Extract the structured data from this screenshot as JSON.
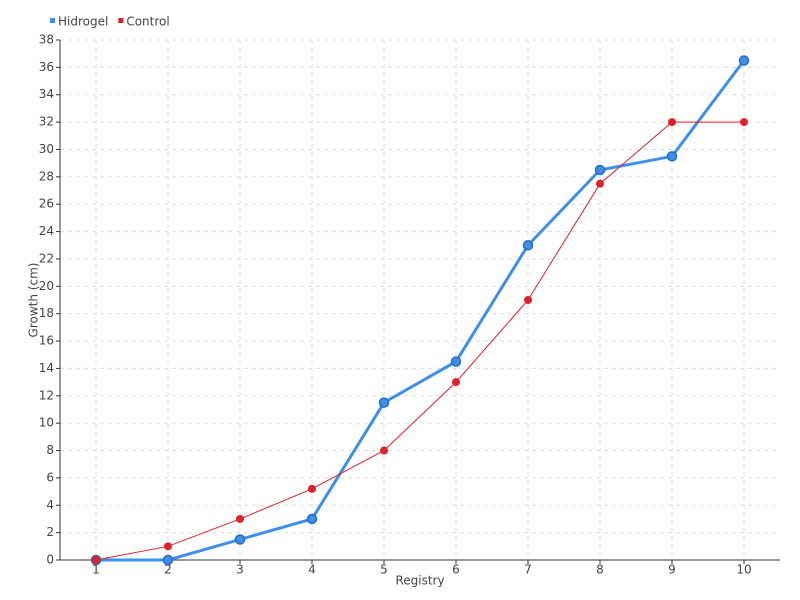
{
  "chart_data": {
    "type": "line",
    "x_label": "Registry",
    "y_label": "Growth (cm)",
    "categories": [
      "1",
      "2",
      "3",
      "4",
      "5",
      "6",
      "7",
      "8",
      "9",
      "10"
    ],
    "series": [
      {
        "name": "Hidrogel",
        "color": "#3d8fe8",
        "values": [
          0,
          0,
          1.5,
          3,
          11.5,
          14.5,
          23,
          28.5,
          29.5,
          36.5
        ]
      },
      {
        "name": "Control",
        "color": "#e0202a",
        "values": [
          0,
          1,
          3,
          5.2,
          8,
          13,
          19,
          27.5,
          32,
          32
        ]
      }
    ],
    "ylim": [
      0,
      38
    ],
    "yticks": [
      0,
      2,
      4,
      6,
      8,
      10,
      12,
      14,
      16,
      18,
      20,
      22,
      24,
      26,
      28,
      30,
      32,
      34,
      36,
      38
    ],
    "grid": true,
    "legend": "top-left"
  }
}
